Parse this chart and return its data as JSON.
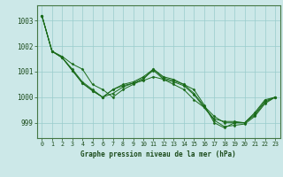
{
  "title": "Graphe pression niveau de la mer (hPa)",
  "background_color": "#cce8e8",
  "grid_color": "#99cccc",
  "line_color": "#1a6b1a",
  "x_ticks": [
    0,
    1,
    2,
    3,
    4,
    5,
    6,
    7,
    8,
    9,
    10,
    11,
    12,
    13,
    14,
    15,
    16,
    17,
    18,
    19,
    20,
    21,
    22,
    23
  ],
  "y_ticks": [
    999,
    1000,
    1001,
    1002,
    1003
  ],
  "ylim": [
    998.4,
    1003.6
  ],
  "xlim": [
    -0.5,
    23.5
  ],
  "series": [
    [
      1003.2,
      1001.8,
      1001.6,
      1001.3,
      1001.1,
      1000.5,
      1000.3,
      1000.0,
      1000.3,
      1000.5,
      1000.7,
      1001.1,
      1000.8,
      1000.7,
      1000.5,
      1000.3,
      999.7,
      999.0,
      998.8,
      999.0,
      999.0,
      999.4,
      999.9,
      1000.0
    ],
    [
      1003.2,
      1001.8,
      1001.55,
      1001.1,
      1000.6,
      1000.3,
      1000.0,
      1000.3,
      1000.45,
      1000.55,
      1000.65,
      1000.8,
      1000.7,
      1000.5,
      1000.3,
      999.9,
      999.6,
      999.15,
      999.05,
      999.05,
      999.0,
      999.35,
      999.85,
      1000.0
    ],
    [
      1003.2,
      1001.8,
      1001.55,
      1001.05,
      1000.55,
      1000.25,
      1000.0,
      1000.3,
      1000.5,
      1000.6,
      1000.8,
      1001.1,
      1000.75,
      1000.65,
      1000.5,
      1000.15,
      999.65,
      999.25,
      999.0,
      999.0,
      999.0,
      999.3,
      999.8,
      1000.0
    ],
    [
      1003.2,
      1001.8,
      1001.55,
      1001.05,
      1000.55,
      1000.25,
      1000.0,
      1000.15,
      1000.4,
      1000.55,
      1000.75,
      1001.05,
      1000.7,
      1000.6,
      1000.45,
      1000.1,
      999.6,
      999.1,
      998.85,
      998.9,
      998.95,
      999.25,
      999.75,
      1000.0
    ]
  ]
}
